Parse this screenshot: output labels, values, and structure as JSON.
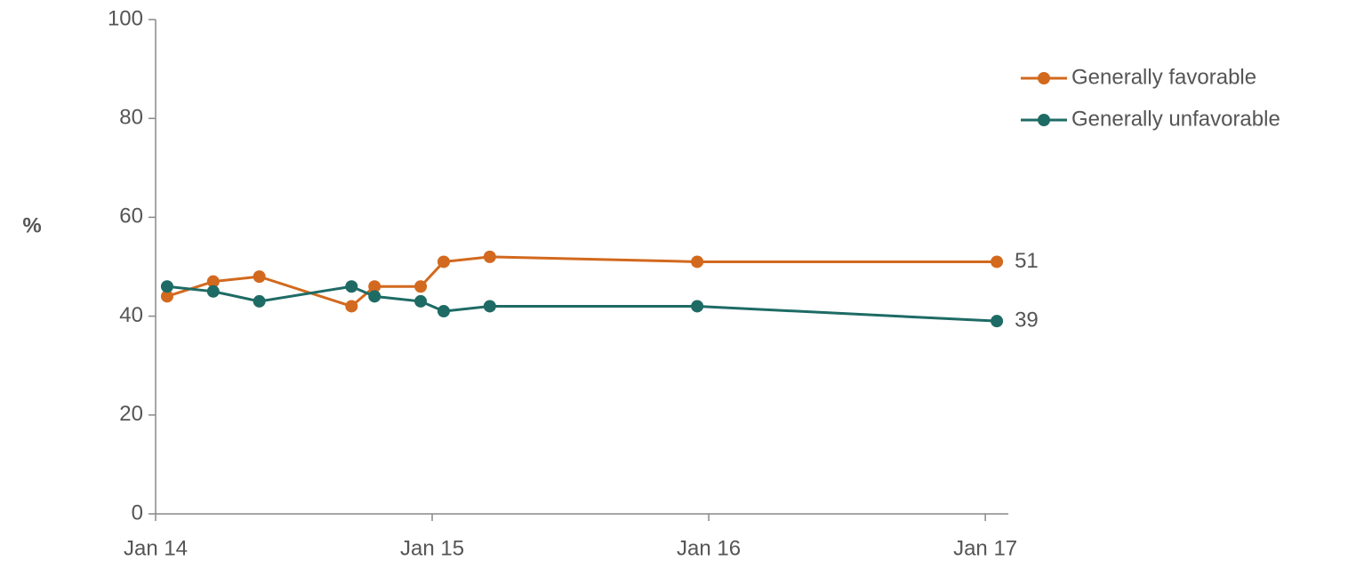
{
  "chart_data": {
    "type": "line",
    "ylabel": "%",
    "x": [
      "2014-01",
      "2014-03",
      "2014-05",
      "2014-09",
      "2014-10",
      "2014-12",
      "2015-01",
      "2015-03",
      "2015-12",
      "2017-01"
    ],
    "series": [
      {
        "name": "Generally favorable",
        "color": "#d2691e",
        "values": [
          44,
          47,
          48,
          42,
          46,
          46,
          51,
          52,
          51,
          51
        ]
      },
      {
        "name": "Generally unfavorable",
        "color": "#1e6b65",
        "values": [
          46,
          45,
          43,
          46,
          44,
          43,
          41,
          42,
          42,
          39
        ]
      }
    ],
    "xlim": [
      "2014-01",
      "2017-02"
    ],
    "xticks": [
      {
        "value": "2014-01",
        "label": "Jan 14"
      },
      {
        "value": "2015-01",
        "label": "Jan 15"
      },
      {
        "value": "2016-01",
        "label": "Jan 16"
      },
      {
        "value": "2017-01",
        "label": "Jan 17"
      }
    ],
    "ylim": [
      0,
      100
    ],
    "yticks": [
      0,
      20,
      40,
      60,
      80,
      100
    ],
    "legend": "top-right",
    "end_labels": true
  }
}
